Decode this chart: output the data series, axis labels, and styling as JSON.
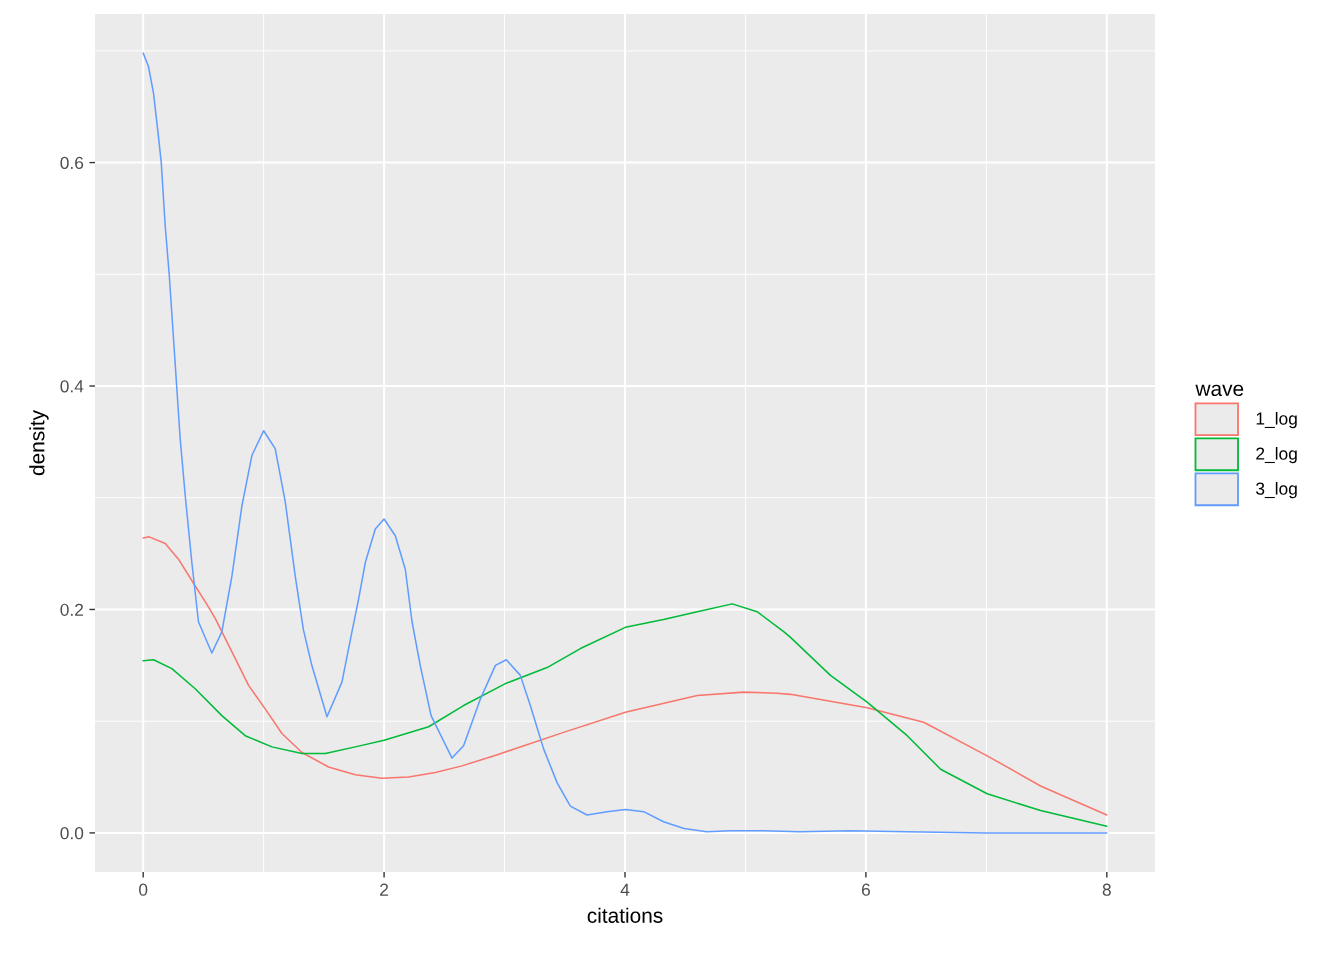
{
  "chart_data": {
    "type": "line",
    "xlabel": "citations",
    "ylabel": "density",
    "legend_title": "wave",
    "legend": "right",
    "grid": true,
    "xlim": [
      -0.4,
      8.4
    ],
    "ylim": [
      -0.035,
      0.733
    ],
    "xticks": [
      0,
      2,
      4,
      6,
      8
    ],
    "yticks": [
      {
        "value": 0,
        "label": "0.0"
      },
      0.2,
      0.4,
      0.6
    ],
    "series": [
      {
        "name": "1_log",
        "color": "#f8766d",
        "x": [
          0,
          0.05,
          0.183,
          0.293,
          0.432,
          0.515,
          0.598,
          0.737,
          0.875,
          1.013,
          1.152,
          1.318,
          1.539,
          1.761,
          1.982,
          2.204,
          2.425,
          2.647,
          2.94,
          3.49,
          4.003,
          4.6,
          4.986,
          5.26,
          5.374,
          6.01,
          6.48,
          7.007,
          7.45,
          8.0
        ],
        "values": [
          0.264,
          0.265,
          0.259,
          0.245,
          0.221,
          0.207,
          0.192,
          0.162,
          0.132,
          0.111,
          0.089,
          0.072,
          0.059,
          0.052,
          0.049,
          0.05,
          0.054,
          0.06,
          0.07,
          0.09,
          0.108,
          0.123,
          0.126,
          0.125,
          0.124,
          0.112,
          0.099,
          0.069,
          0.042,
          0.016
        ]
      },
      {
        "name": "2_log",
        "color": "#00ba38",
        "x": [
          0,
          0.086,
          0.238,
          0.432,
          0.653,
          0.847,
          1.069,
          1.318,
          1.512,
          1.761,
          2.0,
          2.37,
          2.66,
          3.015,
          3.353,
          3.63,
          4.003,
          4.32,
          4.6,
          4.89,
          5.097,
          5.32,
          5.374,
          5.54,
          5.706,
          6.01,
          6.343,
          6.62,
          7.007,
          7.45,
          8.0
        ],
        "values": [
          0.154,
          0.155,
          0.147,
          0.129,
          0.105,
          0.087,
          0.077,
          0.071,
          0.071,
          0.077,
          0.083,
          0.095,
          0.114,
          0.134,
          0.148,
          0.165,
          0.184,
          0.191,
          0.198,
          0.205,
          0.198,
          0.18,
          0.175,
          0.158,
          0.141,
          0.117,
          0.087,
          0.057,
          0.035,
          0.02,
          0.006
        ]
      },
      {
        "name": "3_log",
        "color": "#619cff",
        "x": [
          0,
          0.044,
          0.086,
          0.127,
          0.15,
          0.183,
          0.216,
          0.247,
          0.307,
          0.349,
          0.404,
          0.459,
          0.57,
          0.653,
          0.737,
          0.82,
          0.903,
          1.0,
          1.096,
          1.18,
          1.262,
          1.33,
          1.4,
          1.526,
          1.65,
          1.733,
          1.788,
          1.844,
          1.927,
          2.0,
          2.093,
          2.176,
          2.232,
          2.3,
          2.39,
          2.564,
          2.66,
          2.8,
          2.924,
          3.015,
          3.131,
          3.214,
          3.325,
          3.436,
          3.546,
          3.685,
          3.851,
          4.003,
          4.155,
          4.32,
          4.49,
          4.68,
          4.875,
          5.15,
          5.45,
          5.87,
          6.34,
          7.0,
          8.0
        ],
        "values": [
          0.698,
          0.686,
          0.662,
          0.623,
          0.6,
          0.543,
          0.5,
          0.45,
          0.353,
          0.302,
          0.242,
          0.189,
          0.161,
          0.18,
          0.23,
          0.293,
          0.338,
          0.36,
          0.344,
          0.296,
          0.23,
          0.182,
          0.15,
          0.104,
          0.135,
          0.18,
          0.209,
          0.242,
          0.272,
          0.281,
          0.266,
          0.236,
          0.189,
          0.15,
          0.105,
          0.067,
          0.078,
          0.12,
          0.15,
          0.155,
          0.141,
          0.114,
          0.075,
          0.045,
          0.024,
          0.016,
          0.019,
          0.021,
          0.019,
          0.01,
          0.004,
          0.001,
          0.002,
          0.002,
          0.001,
          0.002,
          0.001,
          0.0,
          0.0
        ]
      }
    ]
  }
}
